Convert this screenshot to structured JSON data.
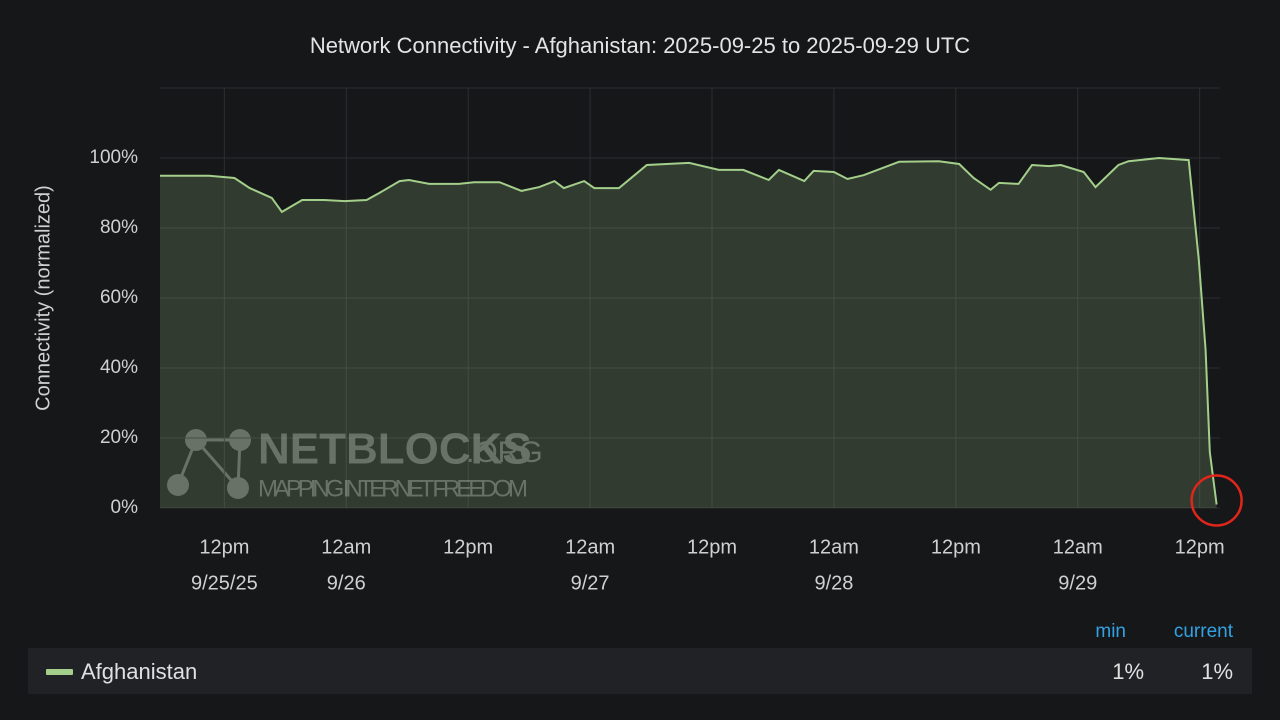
{
  "chart_data": {
    "type": "line",
    "title": "Network Connectivity - Afghanistan: 2025-09-25 to 2025-09-29 UTC",
    "y_label": "Connectivity (normalized)",
    "x": [
      "2025-09-25 05:40",
      "2025-09-25 10:30",
      "2025-09-25 13:00",
      "2025-09-25 14:30",
      "2025-09-25 16:40",
      "2025-09-25 17:40",
      "2025-09-25 19:40",
      "2025-09-25 21:50",
      "2025-09-25 23:50",
      "2025-09-26 02:00",
      "2025-09-26 03:15",
      "2025-09-26 05:15",
      "2025-09-26 06:10",
      "2025-09-26 08:10",
      "2025-09-26 11:05",
      "2025-09-26 12:35",
      "2025-09-26 15:05",
      "2025-09-26 17:15",
      "2025-09-26 19:00",
      "2025-09-26 20:30",
      "2025-09-26 21:25",
      "2025-09-26 23:25",
      "2025-09-27 00:25",
      "2025-09-27 02:50",
      "2025-09-27 05:35",
      "2025-09-27 09:45",
      "2025-09-27 12:40",
      "2025-09-27 15:05",
      "2025-09-27 17:35",
      "2025-09-27 18:35",
      "2025-09-27 21:05",
      "2025-09-27 22:00",
      "2025-09-28 00:00",
      "2025-09-28 01:20",
      "2025-09-28 02:55",
      "2025-09-28 06:25",
      "2025-09-28 10:20",
      "2025-09-28 12:20",
      "2025-09-28 13:45",
      "2025-09-28 15:25",
      "2025-09-28 16:15",
      "2025-09-28 18:10",
      "2025-09-28 19:30",
      "2025-09-28 21:10",
      "2025-09-28 22:20",
      "2025-09-29 00:35",
      "2025-09-29 01:45",
      "2025-09-29 04:00",
      "2025-09-29 05:00",
      "2025-09-29 08:00",
      "2025-09-29 10:55",
      "2025-09-29 11:55",
      "2025-09-29 12:35",
      "2025-09-29 13:00",
      "2025-09-29 13:40"
    ],
    "series": [
      {
        "name": "Afghanistan",
        "color": "#a3cf8a",
        "values": [
          94.9,
          94.9,
          94.3,
          91.4,
          88.6,
          84.6,
          88,
          88,
          87.7,
          88,
          90,
          93.4,
          93.7,
          92.6,
          92.6,
          93.1,
          93.1,
          90.6,
          91.7,
          93.4,
          91.4,
          93.4,
          91.4,
          91.4,
          98,
          98.6,
          96.6,
          96.6,
          93.7,
          96.6,
          93.4,
          96.3,
          96,
          94,
          95.1,
          98.9,
          99.1,
          98.3,
          94.3,
          90.9,
          92.9,
          92.6,
          98,
          97.7,
          98,
          96,
          91.7,
          98,
          99.1,
          100,
          99.4,
          70.9,
          45.1,
          16,
          1
        ]
      }
    ],
    "xlim": [
      "2025-09-25 05:40",
      "2025-09-29 14:00"
    ],
    "xticks": [
      {
        "value": "2025-09-25 12:00",
        "label": [
          "12pm",
          "9/25/25"
        ]
      },
      {
        "value": "2025-09-26 00:00",
        "label": [
          "12am",
          "9/26"
        ]
      },
      {
        "value": "2025-09-26 12:00",
        "label": [
          "12pm"
        ]
      },
      {
        "value": "2025-09-27 00:00",
        "label": [
          "12am",
          "9/27"
        ]
      },
      {
        "value": "2025-09-27 12:00",
        "label": [
          "12pm"
        ]
      },
      {
        "value": "2025-09-28 00:00",
        "label": [
          "12am",
          "9/28"
        ]
      },
      {
        "value": "2025-09-28 12:00",
        "label": [
          "12pm"
        ]
      },
      {
        "value": "2025-09-29 00:00",
        "label": [
          "12am",
          "9/29"
        ]
      },
      {
        "value": "2025-09-29 12:00",
        "label": [
          "12pm"
        ]
      }
    ],
    "ylim": [
      0,
      120
    ],
    "yticks": [
      {
        "value": 0,
        "label": "0%"
      },
      {
        "value": 20,
        "label": "20%"
      },
      {
        "value": 40,
        "label": "40%"
      },
      {
        "value": 60,
        "label": "60%"
      },
      {
        "value": 80,
        "label": "80%"
      },
      {
        "value": 100,
        "label": "100%"
      }
    ],
    "grid": true,
    "legend": {
      "columns": [
        "min",
        "current"
      ],
      "values": [
        1,
        1
      ],
      "value_labels": [
        "1%",
        "1%"
      ]
    },
    "watermark": {
      "name": "NETBLOCKS",
      "suffix": ".ORG",
      "tagline": "MAPPING INTERNET FREEDOM"
    }
  }
}
